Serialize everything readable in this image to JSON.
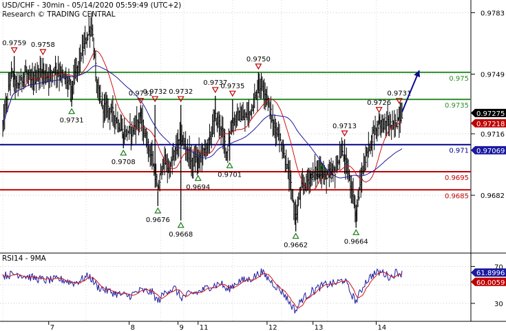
{
  "header": {
    "title": "USD/CHF - 30min - 05/14/2020 05:59:49 (UTC+2)",
    "subtitle": "Research © TRADING CENTRAL"
  },
  "rsi_panel": {
    "title": "RSI14 - 9MA"
  },
  "colors": {
    "resistance": "#2e8b2e",
    "pivot": "#00008b",
    "support": "#c00000",
    "fast_ma": "#d01010",
    "slow_ma": "#1a1aa0",
    "price": "#000000",
    "arrow": "#0a0a8a"
  },
  "chart_data": [
    {
      "type": "line",
      "subtype": "candlestick_with_levels",
      "instrument": "USD/CHF",
      "timeframe": "30min",
      "ylim": [
        0.965,
        0.979
      ],
      "y_ticks": [
        "0.9783",
        "0.9749",
        "0.9716",
        "0.9682"
      ],
      "x_tick_labels": [
        "7",
        "8",
        "9",
        "11",
        "12",
        "13",
        "14"
      ],
      "horizontal_levels": [
        {
          "label": "0.975",
          "value": 0.975,
          "kind": "resistance"
        },
        {
          "label": "0.9735",
          "value": 0.9735,
          "kind": "resistance"
        },
        {
          "label": "0.971",
          "value": 0.971,
          "kind": "pivot"
        },
        {
          "label": "0.9695",
          "value": 0.9695,
          "kind": "support"
        },
        {
          "label": "0.9685",
          "value": 0.9685,
          "kind": "support"
        }
      ],
      "price_tags": [
        {
          "label": "0.97275",
          "value": 0.97275,
          "kind": "last"
        },
        {
          "label": "0.97218",
          "value": 0.97218,
          "kind": "fast_ma"
        },
        {
          "label": "0.97069",
          "value": 0.97069,
          "kind": "slow_ma"
        }
      ],
      "swing_highs": [
        {
          "label": "0.9759",
          "value": 0.9759,
          "x": 4
        },
        {
          "label": "0.9758",
          "value": 0.9758,
          "x": 14
        },
        {
          "label": "0.9731",
          "value": 0.9731,
          "x": 48
        },
        {
          "label": "0.9732",
          "value": 0.9732,
          "x": 53
        },
        {
          "label": "0.9732",
          "value": 0.9732,
          "x": 62
        },
        {
          "label": "0.9737",
          "value": 0.9737,
          "x": 74
        },
        {
          "label": "0.9735",
          "value": 0.9735,
          "x": 80
        },
        {
          "label": "0.9750",
          "value": 0.975,
          "x": 89
        },
        {
          "label": "0.9713",
          "value": 0.9713,
          "x": 119
        },
        {
          "label": "0.9726",
          "value": 0.9726,
          "x": 131
        },
        {
          "label": "0.9731",
          "value": 0.9731,
          "x": 138
        }
      ],
      "swing_lows": [
        {
          "label": "0.9731",
          "value": 0.9731,
          "x": 24
        },
        {
          "label": "0.9708",
          "value": 0.9708,
          "x": 42
        },
        {
          "label": "0.9676",
          "value": 0.9676,
          "x": 54
        },
        {
          "label": "0.9668",
          "value": 0.9668,
          "x": 62
        },
        {
          "label": "0.9694",
          "value": 0.9694,
          "x": 68
        },
        {
          "label": "0.9701",
          "value": 0.9701,
          "x": 79
        },
        {
          "label": "0.9662",
          "value": 0.9662,
          "x": 102
        },
        {
          "label": "0.9700",
          "value": 0.97,
          "x": 111
        },
        {
          "label": "0.9664",
          "value": 0.9664,
          "x": 123
        }
      ],
      "price_anchors": [
        [
          0,
          0.972
        ],
        [
          3,
          0.975
        ],
        [
          5,
          0.9742
        ],
        [
          8,
          0.975
        ],
        [
          10,
          0.9744
        ],
        [
          13,
          0.975
        ],
        [
          16,
          0.9748
        ],
        [
          18,
          0.9752
        ],
        [
          21,
          0.9748
        ],
        [
          24,
          0.9742
        ],
        [
          27,
          0.9758
        ],
        [
          29,
          0.9768
        ],
        [
          31,
          0.9776
        ],
        [
          33,
          0.974
        ],
        [
          35,
          0.9731
        ],
        [
          37,
          0.973
        ],
        [
          39,
          0.9726
        ],
        [
          42,
          0.9716
        ],
        [
          45,
          0.9718
        ],
        [
          48,
          0.9725
        ],
        [
          50,
          0.9712
        ],
        [
          52,
          0.9703
        ],
        [
          54,
          0.9684
        ],
        [
          56,
          0.9702
        ],
        [
          58,
          0.9696
        ],
        [
          60,
          0.9706
        ],
        [
          62,
          0.9714
        ],
        [
          64,
          0.9708
        ],
        [
          66,
          0.97
        ],
        [
          68,
          0.9703
        ],
        [
          70,
          0.9706
        ],
        [
          72,
          0.9712
        ],
        [
          74,
          0.9725
        ],
        [
          76,
          0.972
        ],
        [
          78,
          0.9706
        ],
        [
          80,
          0.9722
        ],
        [
          82,
          0.9726
        ],
        [
          84,
          0.9724
        ],
        [
          86,
          0.9728
        ],
        [
          88,
          0.9736
        ],
        [
          90,
          0.9744
        ],
        [
          92,
          0.9737
        ],
        [
          94,
          0.9722
        ],
        [
          96,
          0.9716
        ],
        [
          98,
          0.9704
        ],
        [
          100,
          0.969
        ],
        [
          102,
          0.967
        ],
        [
          104,
          0.9686
        ],
        [
          106,
          0.969
        ],
        [
          108,
          0.9694
        ],
        [
          110,
          0.9696
        ],
        [
          112,
          0.9693
        ],
        [
          114,
          0.9694
        ],
        [
          116,
          0.9696
        ],
        [
          118,
          0.9706
        ],
        [
          120,
          0.9696
        ],
        [
          122,
          0.9682
        ],
        [
          123,
          0.9673
        ],
        [
          125,
          0.9692
        ],
        [
          127,
          0.9706
        ],
        [
          129,
          0.9716
        ],
        [
          131,
          0.9722
        ],
        [
          134,
          0.9722
        ],
        [
          136,
          0.972
        ],
        [
          138,
          0.9724
        ],
        [
          139,
          0.97275
        ]
      ],
      "forecast_arrow": {
        "from": [
          139,
          0.9728
        ],
        "to": [
          145,
          0.9751
        ]
      }
    },
    {
      "type": "line",
      "title": "RSI14 - 9MA",
      "ylim": [
        15,
        80
      ],
      "y_ticks": [
        "70",
        "30"
      ],
      "guide_levels": [
        70,
        50,
        30
      ],
      "current_values": [
        {
          "label": "61.8996",
          "value": 61.8996,
          "series": "RSI14"
        },
        {
          "label": "60.0059",
          "value": 60.0059,
          "series": "9MA"
        }
      ],
      "rsi_anchors": [
        [
          0,
          60
        ],
        [
          5,
          62
        ],
        [
          10,
          58
        ],
        [
          15,
          55
        ],
        [
          20,
          56
        ],
        [
          25,
          52
        ],
        [
          30,
          60
        ],
        [
          33,
          48
        ],
        [
          36,
          44
        ],
        [
          40,
          40
        ],
        [
          44,
          38
        ],
        [
          48,
          44
        ],
        [
          52,
          42
        ],
        [
          54,
          32
        ],
        [
          57,
          44
        ],
        [
          60,
          46
        ],
        [
          62,
          36
        ],
        [
          65,
          40
        ],
        [
          68,
          42
        ],
        [
          72,
          48
        ],
        [
          76,
          52
        ],
        [
          78,
          44
        ],
        [
          82,
          54
        ],
        [
          86,
          56
        ],
        [
          90,
          64
        ],
        [
          94,
          52
        ],
        [
          98,
          40
        ],
        [
          100,
          30
        ],
        [
          102,
          22
        ],
        [
          104,
          34
        ],
        [
          108,
          44
        ],
        [
          112,
          50
        ],
        [
          116,
          52
        ],
        [
          119,
          56
        ],
        [
          121,
          42
        ],
        [
          123,
          32
        ],
        [
          126,
          52
        ],
        [
          129,
          62
        ],
        [
          132,
          64
        ],
        [
          135,
          58
        ],
        [
          137,
          64
        ],
        [
          139,
          62
        ]
      ]
    }
  ]
}
